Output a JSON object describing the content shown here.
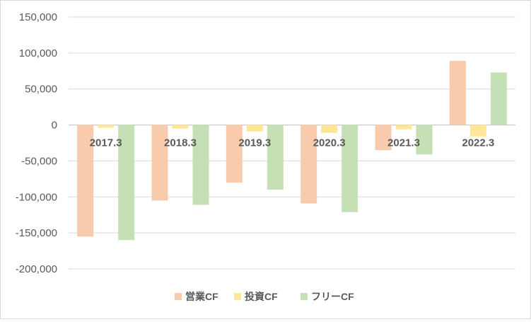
{
  "colors": {
    "operating": "#f8cbad",
    "investing": "#ffe699",
    "free": "#c5e0b4"
  },
  "chart_data": {
    "type": "bar",
    "categories": [
      "2017.3",
      "2018.3",
      "2019.3",
      "2020.3",
      "2021.3",
      "2022.3"
    ],
    "series": [
      {
        "name": "営業CF",
        "key": "operating",
        "values": [
          -155000,
          -105000,
          -80000,
          -109000,
          -35000,
          89000
        ]
      },
      {
        "name": "投資CF",
        "key": "investing",
        "values": [
          -4000,
          -5000,
          -9000,
          -11000,
          -6000,
          -16000
        ]
      },
      {
        "name": "フリーCF",
        "key": "free",
        "values": [
          -160000,
          -111000,
          -90000,
          -121000,
          -41000,
          73000
        ]
      }
    ],
    "yticks": [
      "150,000",
      "100,000",
      "50,000",
      "0",
      "-50,000",
      "-100,000",
      "-150,000",
      "-200,000"
    ],
    "ylim": [
      -200000,
      150000
    ],
    "grid": true,
    "legend": "bottom"
  }
}
